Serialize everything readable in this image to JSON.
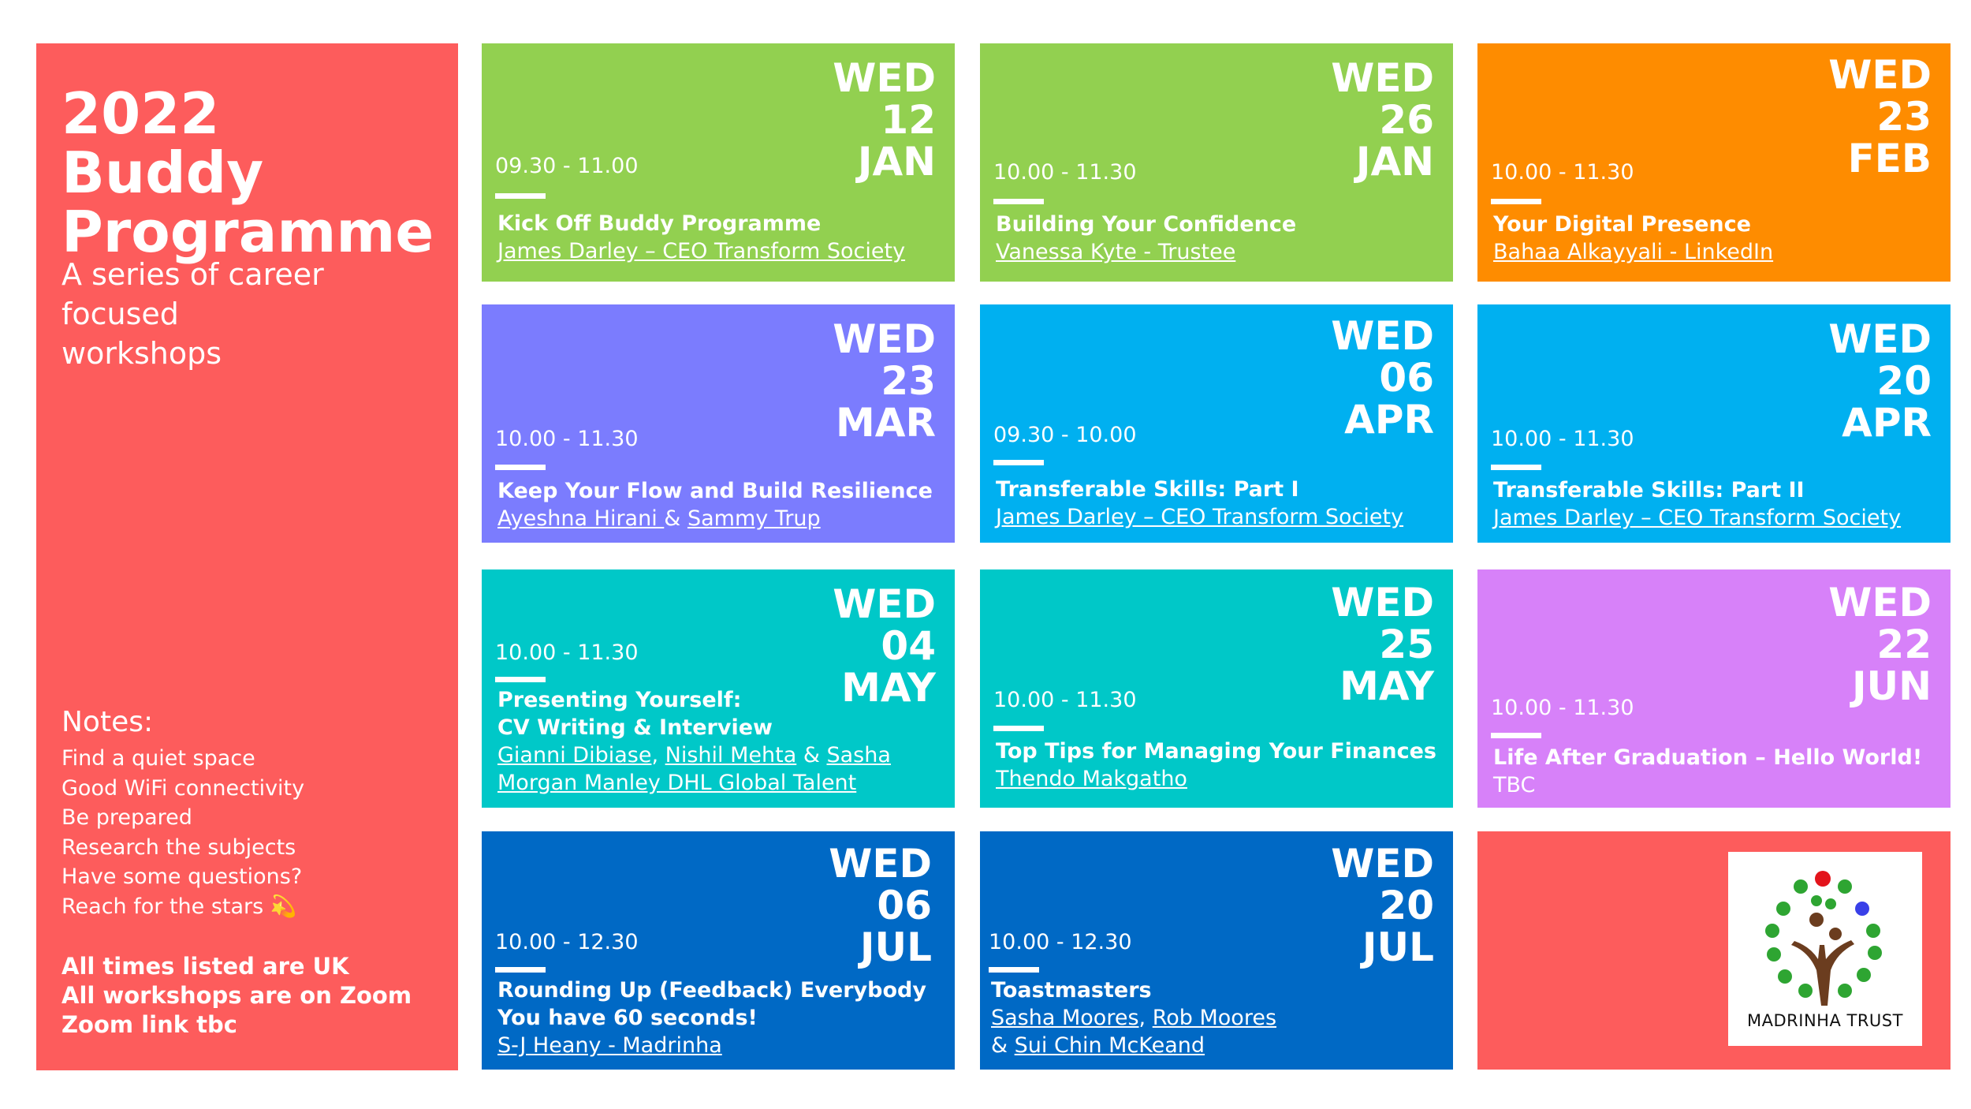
{
  "colors": {
    "coral": "#fd5c5c",
    "green": "#92d050",
    "orange": "#fe8c00",
    "purple_blue": "#7b7cfe",
    "sky_blue": "#00b0f0",
    "teal": "#00c8c8",
    "lilac": "#d781f9",
    "royal_blue": "#0069c5",
    "white": "#ffffff"
  },
  "sidebar": {
    "title_line1": "2022 Buddy",
    "title_line2": "Programme",
    "subtitle_line1": "A series of career focused",
    "subtitle_line2": "workshops",
    "notes_heading": "Notes:",
    "notes": [
      "Find a quiet space",
      "Good WiFi connectivity",
      "Be prepared",
      "Research the subjects",
      "Have some questions?",
      "Reach for the stars 💫"
    ],
    "footer": [
      "All times listed are UK",
      "All workshops are on Zoom",
      "Zoom link tbc"
    ]
  },
  "workshops": [
    {
      "day": "WED",
      "date": "12",
      "month": "JAN",
      "time": "09.30 - 11.00",
      "title": "Kick Off Buddy Programme",
      "speaker": "James Darley – CEO Transform Society"
    },
    {
      "day": "WED",
      "date": "26",
      "month": "JAN",
      "time": "10.00 - 11.30",
      "title": "Building Your Confidence",
      "speaker": "Vanessa Kyte - Trustee"
    },
    {
      "day": "WED",
      "date": "23",
      "month": "FEB",
      "time": "10.00 - 11.30",
      "title": "Your Digital Presence",
      "speaker": "Bahaa Alkayyali - LinkedIn"
    },
    {
      "day": "WED",
      "date": "23",
      "month": "MAR",
      "time": "10.00 - 11.30",
      "title": "Keep Your Flow and Build Resilience",
      "speaker1": "Ayeshna Hirani ",
      "amp": "&",
      "speaker2": "Sammy Trup"
    },
    {
      "day": "WED",
      "date": "06",
      "month": "APR",
      "time": "09.30 - 10.00",
      "title": "Transferable Skills: Part I",
      "speaker": "James Darley – CEO Transform Society"
    },
    {
      "day": "WED",
      "date": "20",
      "month": "APR",
      "time": "10.00 - 11.30",
      "title": "Transferable Skills: Part II",
      "speaker": "James Darley – CEO Transform Society"
    },
    {
      "day": "WED",
      "date": "04",
      "month": "MAY",
      "time": "10.00 - 11.30",
      "title_line1": "Presenting Yourself:",
      "title_line2": "CV Writing & Interview",
      "speaker1": "Gianni Dibiase",
      "comma": ",",
      "speaker2": "Nishil Mehta",
      "amp": "&",
      "speaker3": "Sasha",
      "speaker3_cont": "Morgan Manley DHL Global Talent"
    },
    {
      "day": "WED",
      "date": "25",
      "month": "MAY",
      "time": "10.00 - 11.30",
      "title": "Top Tips for Managing Your Finances",
      "speaker": "Thendo Makgatho"
    },
    {
      "day": "WED",
      "date": "22",
      "month": "JUN",
      "time": "10.00 - 11.30",
      "title": "Life After Graduation – Hello World!",
      "speaker": "TBC"
    },
    {
      "day": "WED",
      "date": "06",
      "month": "JUL",
      "time": "10.00 - 12.30",
      "title_line1": "Rounding Up (Feedback) Everybody",
      "title_line2": "You have 60 seconds!",
      "speaker": "S-J Heany - Madrinha"
    },
    {
      "day": "WED",
      "date": "20",
      "month": "JUL",
      "time": "10.00 - 12.30",
      "title": "Toastmasters",
      "speaker1": "Sasha Moores",
      "comma": ",",
      "speaker2": "Rob Moores",
      "amp": "&",
      "speaker3": "Sui Chin McKeand"
    }
  ],
  "logo": {
    "name": "MADRINHA TRUST"
  }
}
